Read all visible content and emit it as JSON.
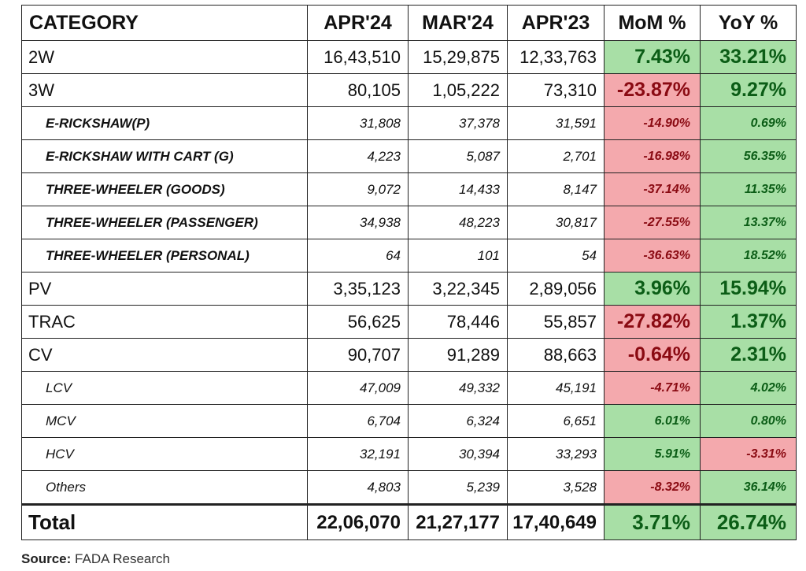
{
  "headers": [
    "CATEGORY",
    "APR'24",
    "MAR'24",
    "APR'23",
    "MoM %",
    "YoY %"
  ],
  "rows": [
    {
      "kind": "major",
      "name": "2W",
      "apr24": "16,43,510",
      "mar24": "15,29,875",
      "apr23": "12,33,763",
      "mom": "7.43%",
      "yoy": "33.21%",
      "mom_sign": "pos",
      "yoy_sign": "pos"
    },
    {
      "kind": "major",
      "name": "3W",
      "apr24": "80,105",
      "mar24": "1,05,222",
      "apr23": "73,310",
      "mom": "-23.87%",
      "yoy": "9.27%",
      "mom_sign": "neg",
      "yoy_sign": "pos"
    },
    {
      "kind": "sub",
      "name": "E-RICKSHAW(P)",
      "apr24": "31,808",
      "mar24": "37,378",
      "apr23": "31,591",
      "mom": "-14.90%",
      "yoy": "0.69%",
      "mom_sign": "neg",
      "yoy_sign": "pos"
    },
    {
      "kind": "sub",
      "name": "E-RICKSHAW WITH CART (G)",
      "apr24": "4,223",
      "mar24": "5,087",
      "apr23": "2,701",
      "mom": "-16.98%",
      "yoy": "56.35%",
      "mom_sign": "neg",
      "yoy_sign": "pos"
    },
    {
      "kind": "sub",
      "name": "THREE-WHEELER (GOODS)",
      "apr24": "9,072",
      "mar24": "14,433",
      "apr23": "8,147",
      "mom": "-37.14%",
      "yoy": "11.35%",
      "mom_sign": "neg",
      "yoy_sign": "pos"
    },
    {
      "kind": "sub",
      "name": "THREE-WHEELER (PASSENGER)",
      "apr24": "34,938",
      "mar24": "48,223",
      "apr23": "30,817",
      "mom": "-27.55%",
      "yoy": "13.37%",
      "mom_sign": "neg",
      "yoy_sign": "pos"
    },
    {
      "kind": "sub",
      "name": "THREE-WHEELER (PERSONAL)",
      "apr24": "64",
      "mar24": "101",
      "apr23": "54",
      "mom": "-36.63%",
      "yoy": "18.52%",
      "mom_sign": "neg",
      "yoy_sign": "pos"
    },
    {
      "kind": "major",
      "name": "PV",
      "apr24": "3,35,123",
      "mar24": "3,22,345",
      "apr23": "2,89,056",
      "mom": "3.96%",
      "yoy": "15.94%",
      "mom_sign": "pos",
      "yoy_sign": "pos"
    },
    {
      "kind": "major",
      "name": "TRAC",
      "apr24": "56,625",
      "mar24": "78,446",
      "apr23": "55,857",
      "mom": "-27.82%",
      "yoy": "1.37%",
      "mom_sign": "neg",
      "yoy_sign": "pos"
    },
    {
      "kind": "major",
      "name": "CV",
      "apr24": "90,707",
      "mar24": "91,289",
      "apr23": "88,663",
      "mom": "-0.64%",
      "yoy": "2.31%",
      "mom_sign": "neg",
      "yoy_sign": "pos"
    },
    {
      "kind": "sub cv",
      "name": "LCV",
      "apr24": "47,009",
      "mar24": "49,332",
      "apr23": "45,191",
      "mom": "-4.71%",
      "yoy": "4.02%",
      "mom_sign": "neg",
      "yoy_sign": "pos"
    },
    {
      "kind": "sub cv",
      "name": "MCV",
      "apr24": "6,704",
      "mar24": "6,324",
      "apr23": "6,651",
      "mom": "6.01%",
      "yoy": "0.80%",
      "mom_sign": "pos",
      "yoy_sign": "pos"
    },
    {
      "kind": "sub cv",
      "name": "HCV",
      "apr24": "32,191",
      "mar24": "30,394",
      "apr23": "33,293",
      "mom": "5.91%",
      "yoy": "-3.31%",
      "mom_sign": "pos",
      "yoy_sign": "neg"
    },
    {
      "kind": "sub cv",
      "name": "Others",
      "apr24": "4,803",
      "mar24": "5,239",
      "apr23": "3,528",
      "mom": "-8.32%",
      "yoy": "36.14%",
      "mom_sign": "neg",
      "yoy_sign": "pos"
    },
    {
      "kind": "total",
      "name": "Total",
      "apr24": "22,06,070",
      "mar24": "21,27,177",
      "apr23": "17,40,649",
      "mom": "3.71%",
      "yoy": "26.74%",
      "mom_sign": "pos",
      "yoy_sign": "pos"
    }
  ],
  "source": {
    "label": "Source:",
    "org": "FADA",
    "rest": "Research"
  },
  "colors": {
    "positive_bg": "#a8dfa6",
    "negative_bg": "#f4a9ad"
  }
}
